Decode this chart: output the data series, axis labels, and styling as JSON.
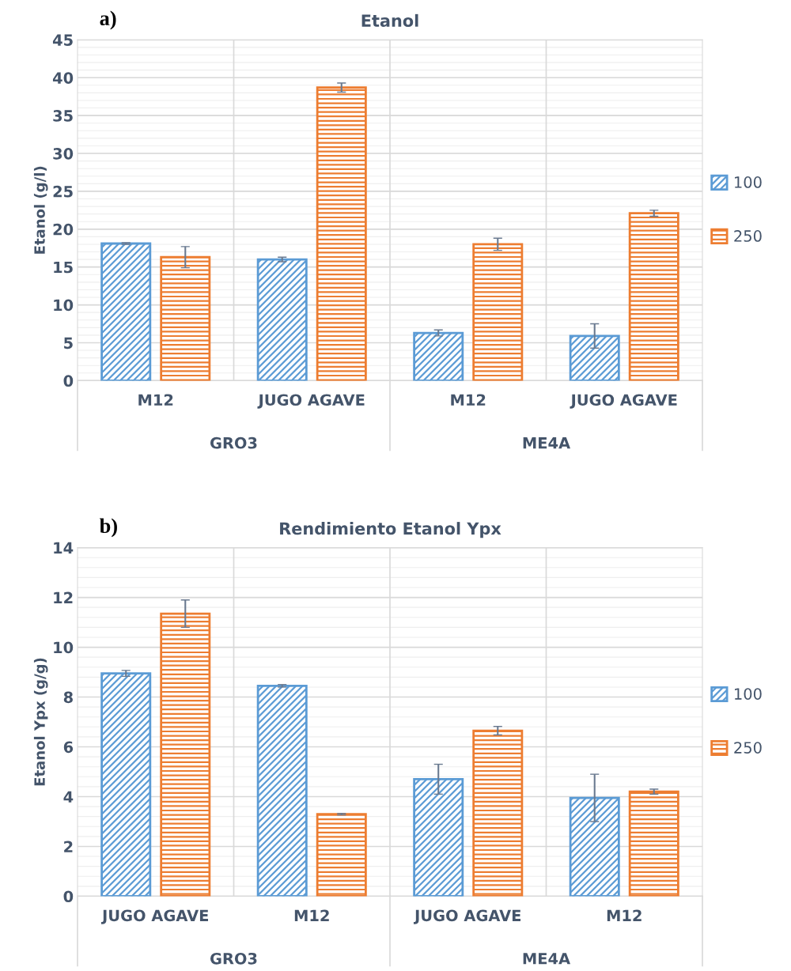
{
  "chart_data": [
    {
      "type": "bar",
      "title": "Etanol",
      "ylabel": "Etanol (g/l)",
      "categories": [
        "M12",
        "JUGO AGAVE",
        "M12",
        "JUGO AGAVE"
      ],
      "annotations": [
        "a)",
        "GRO3",
        "ME4A"
      ],
      "ylim": [
        0,
        45
      ],
      "yticks": [
        0,
        5,
        10,
        15,
        20,
        25,
        30,
        35,
        40,
        45
      ],
      "grid": true,
      "legend": "right",
      "series": [
        {
          "name": "100",
          "color": "#5b9bd5",
          "values": [
            18.1,
            16.0,
            6.3,
            5.9
          ],
          "errors": [
            0.1,
            0.3,
            0.4,
            1.6
          ]
        },
        {
          "name": "250",
          "color": "#ed7d31",
          "values": [
            16.3,
            38.7,
            18.0,
            22.1
          ],
          "errors": [
            1.4,
            0.6,
            0.8,
            0.4
          ]
        }
      ]
    },
    {
      "type": "bar",
      "title": "Rendimiento Etanol Ypx",
      "ylabel": "Etanol Ypx (g/g)",
      "categories": [
        "JUGO AGAVE",
        "M12",
        "JUGO AGAVE",
        "M12"
      ],
      "annotations": [
        "b)",
        "GRO3",
        "ME4A"
      ],
      "ylim": [
        0,
        14
      ],
      "yticks": [
        0,
        2,
        4,
        6,
        8,
        10,
        12,
        14
      ],
      "grid": true,
      "legend": "right",
      "series": [
        {
          "name": "100",
          "color": "#5b9bd5",
          "values": [
            8.95,
            8.45,
            4.7,
            3.95
          ],
          "errors": [
            0.12,
            0.05,
            0.6,
            0.95
          ]
        },
        {
          "name": "250",
          "color": "#ed7d31",
          "values": [
            11.35,
            3.3,
            6.65,
            4.2
          ],
          "errors": [
            0.55,
            0.03,
            0.17,
            0.1
          ]
        }
      ]
    }
  ]
}
